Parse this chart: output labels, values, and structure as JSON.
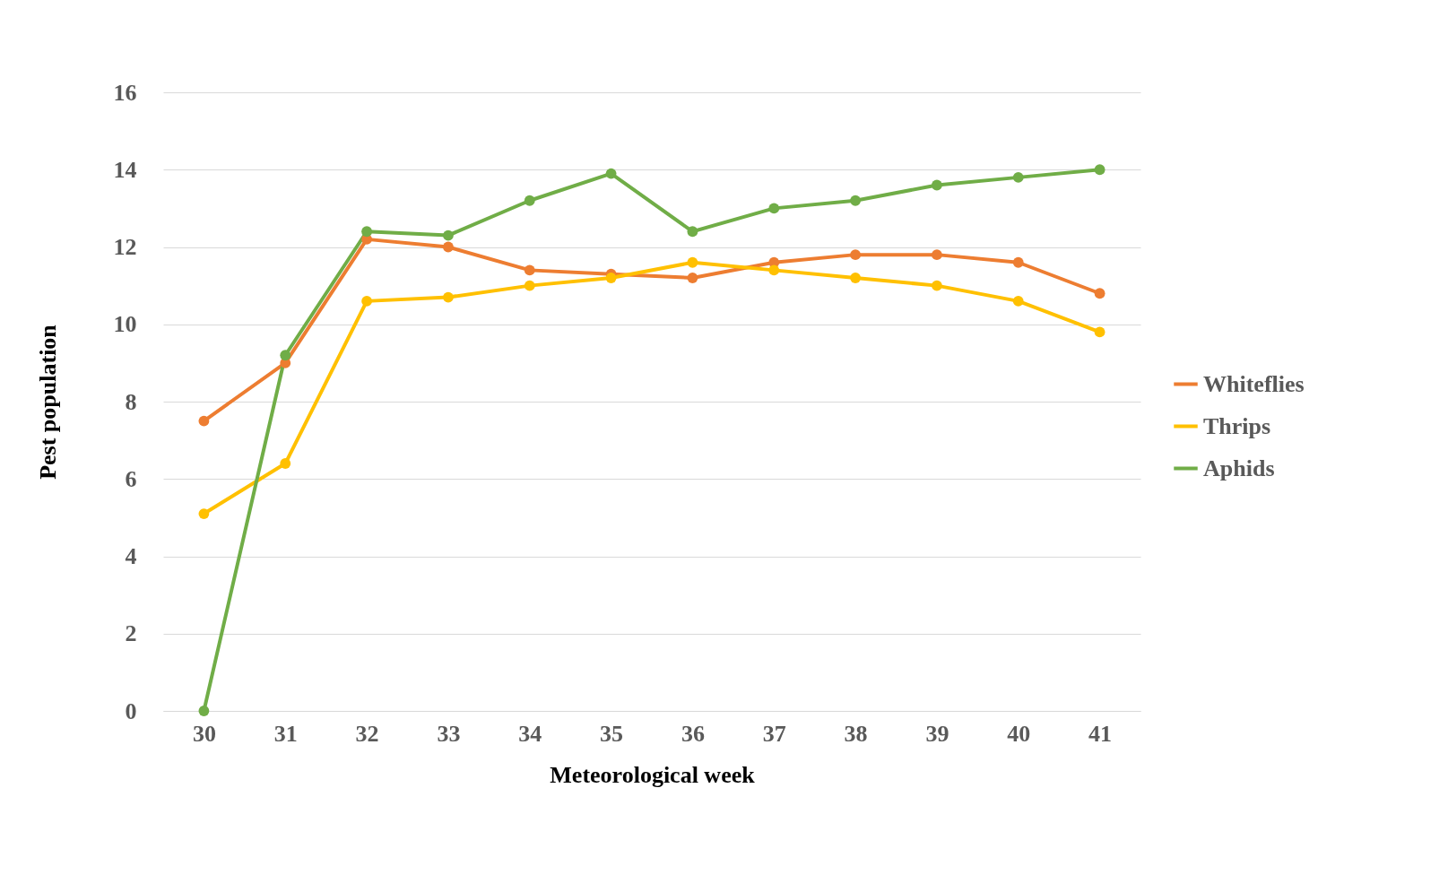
{
  "chart_data": {
    "type": "line",
    "xlabel": "Meteorological week",
    "ylabel": "Pest population",
    "categories": [
      "30",
      "31",
      "32",
      "33",
      "34",
      "35",
      "36",
      "37",
      "38",
      "39",
      "40",
      "41"
    ],
    "series": [
      {
        "name": "Whiteflies",
        "color": "#ed7d31",
        "values": [
          7.5,
          9.0,
          12.2,
          12.0,
          11.4,
          11.3,
          11.2,
          11.6,
          11.8,
          11.8,
          11.6,
          10.8
        ]
      },
      {
        "name": "Thrips",
        "color": "#ffc000",
        "values": [
          5.1,
          6.4,
          10.6,
          10.7,
          11.0,
          11.2,
          11.6,
          11.4,
          11.2,
          11.0,
          10.6,
          9.8
        ]
      },
      {
        "name": "Aphids",
        "color": "#70ad47",
        "values": [
          0,
          9.2,
          12.4,
          12.3,
          13.2,
          13.9,
          12.4,
          13.0,
          13.2,
          13.6,
          13.8,
          14.0
        ]
      }
    ],
    "ylim": [
      0,
      16
    ],
    "yticks": [
      0,
      2,
      4,
      6,
      8,
      10,
      12,
      14,
      16
    ],
    "grid": "y",
    "legend": "right",
    "marker": "circle",
    "line_style": "solid"
  }
}
